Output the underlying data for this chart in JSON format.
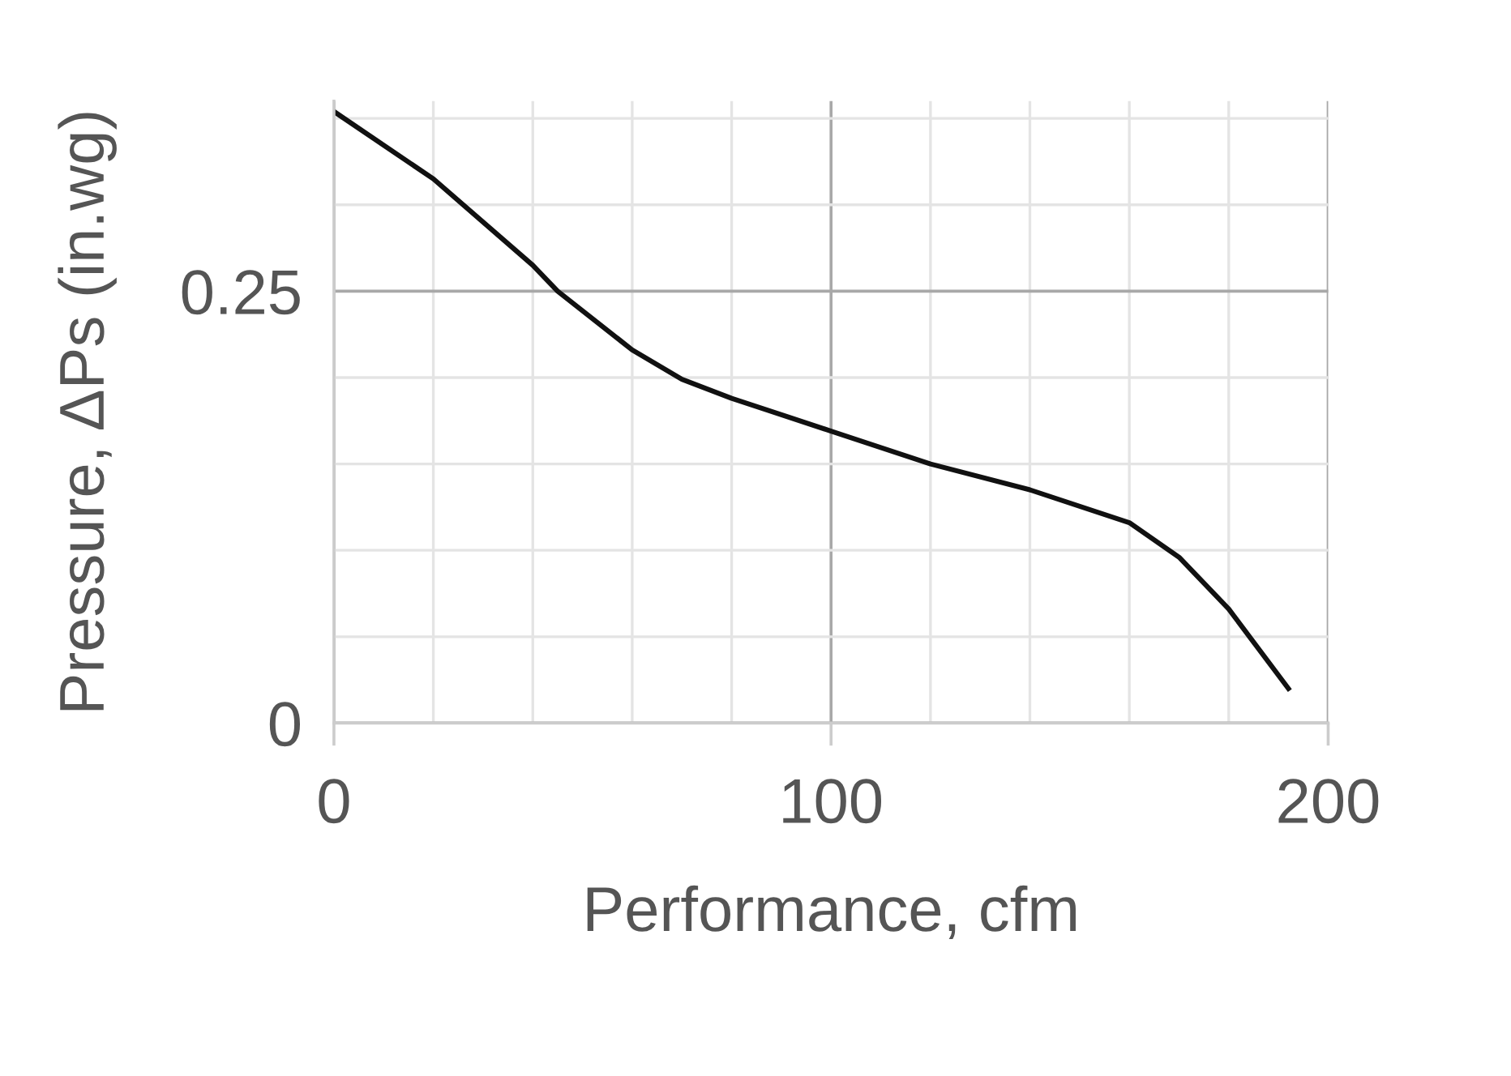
{
  "chart_data": {
    "type": "line",
    "xlabel": "Performance, cfm",
    "ylabel": "Pressure, ΔPs (in.wg)",
    "x": [
      0,
      20,
      40,
      45,
      60,
      70,
      80,
      100,
      120,
      140,
      160,
      170,
      180,
      192
    ],
    "series": [
      {
        "color": "#111111",
        "values": [
          0.354,
          0.315,
          0.265,
          0.25,
          0.216,
          0.199,
          0.188,
          0.169,
          0.15,
          0.135,
          0.116,
          0.096,
          0.066,
          0.02
        ]
      }
    ],
    "xlim": [
      0,
      200
    ],
    "ylim": [
      0,
      0.36
    ],
    "xticks": [
      0,
      100,
      200
    ],
    "yticks": [
      0,
      0.25
    ],
    "grid": true,
    "legend": false,
    "marker": "none",
    "line_style": "solid"
  }
}
